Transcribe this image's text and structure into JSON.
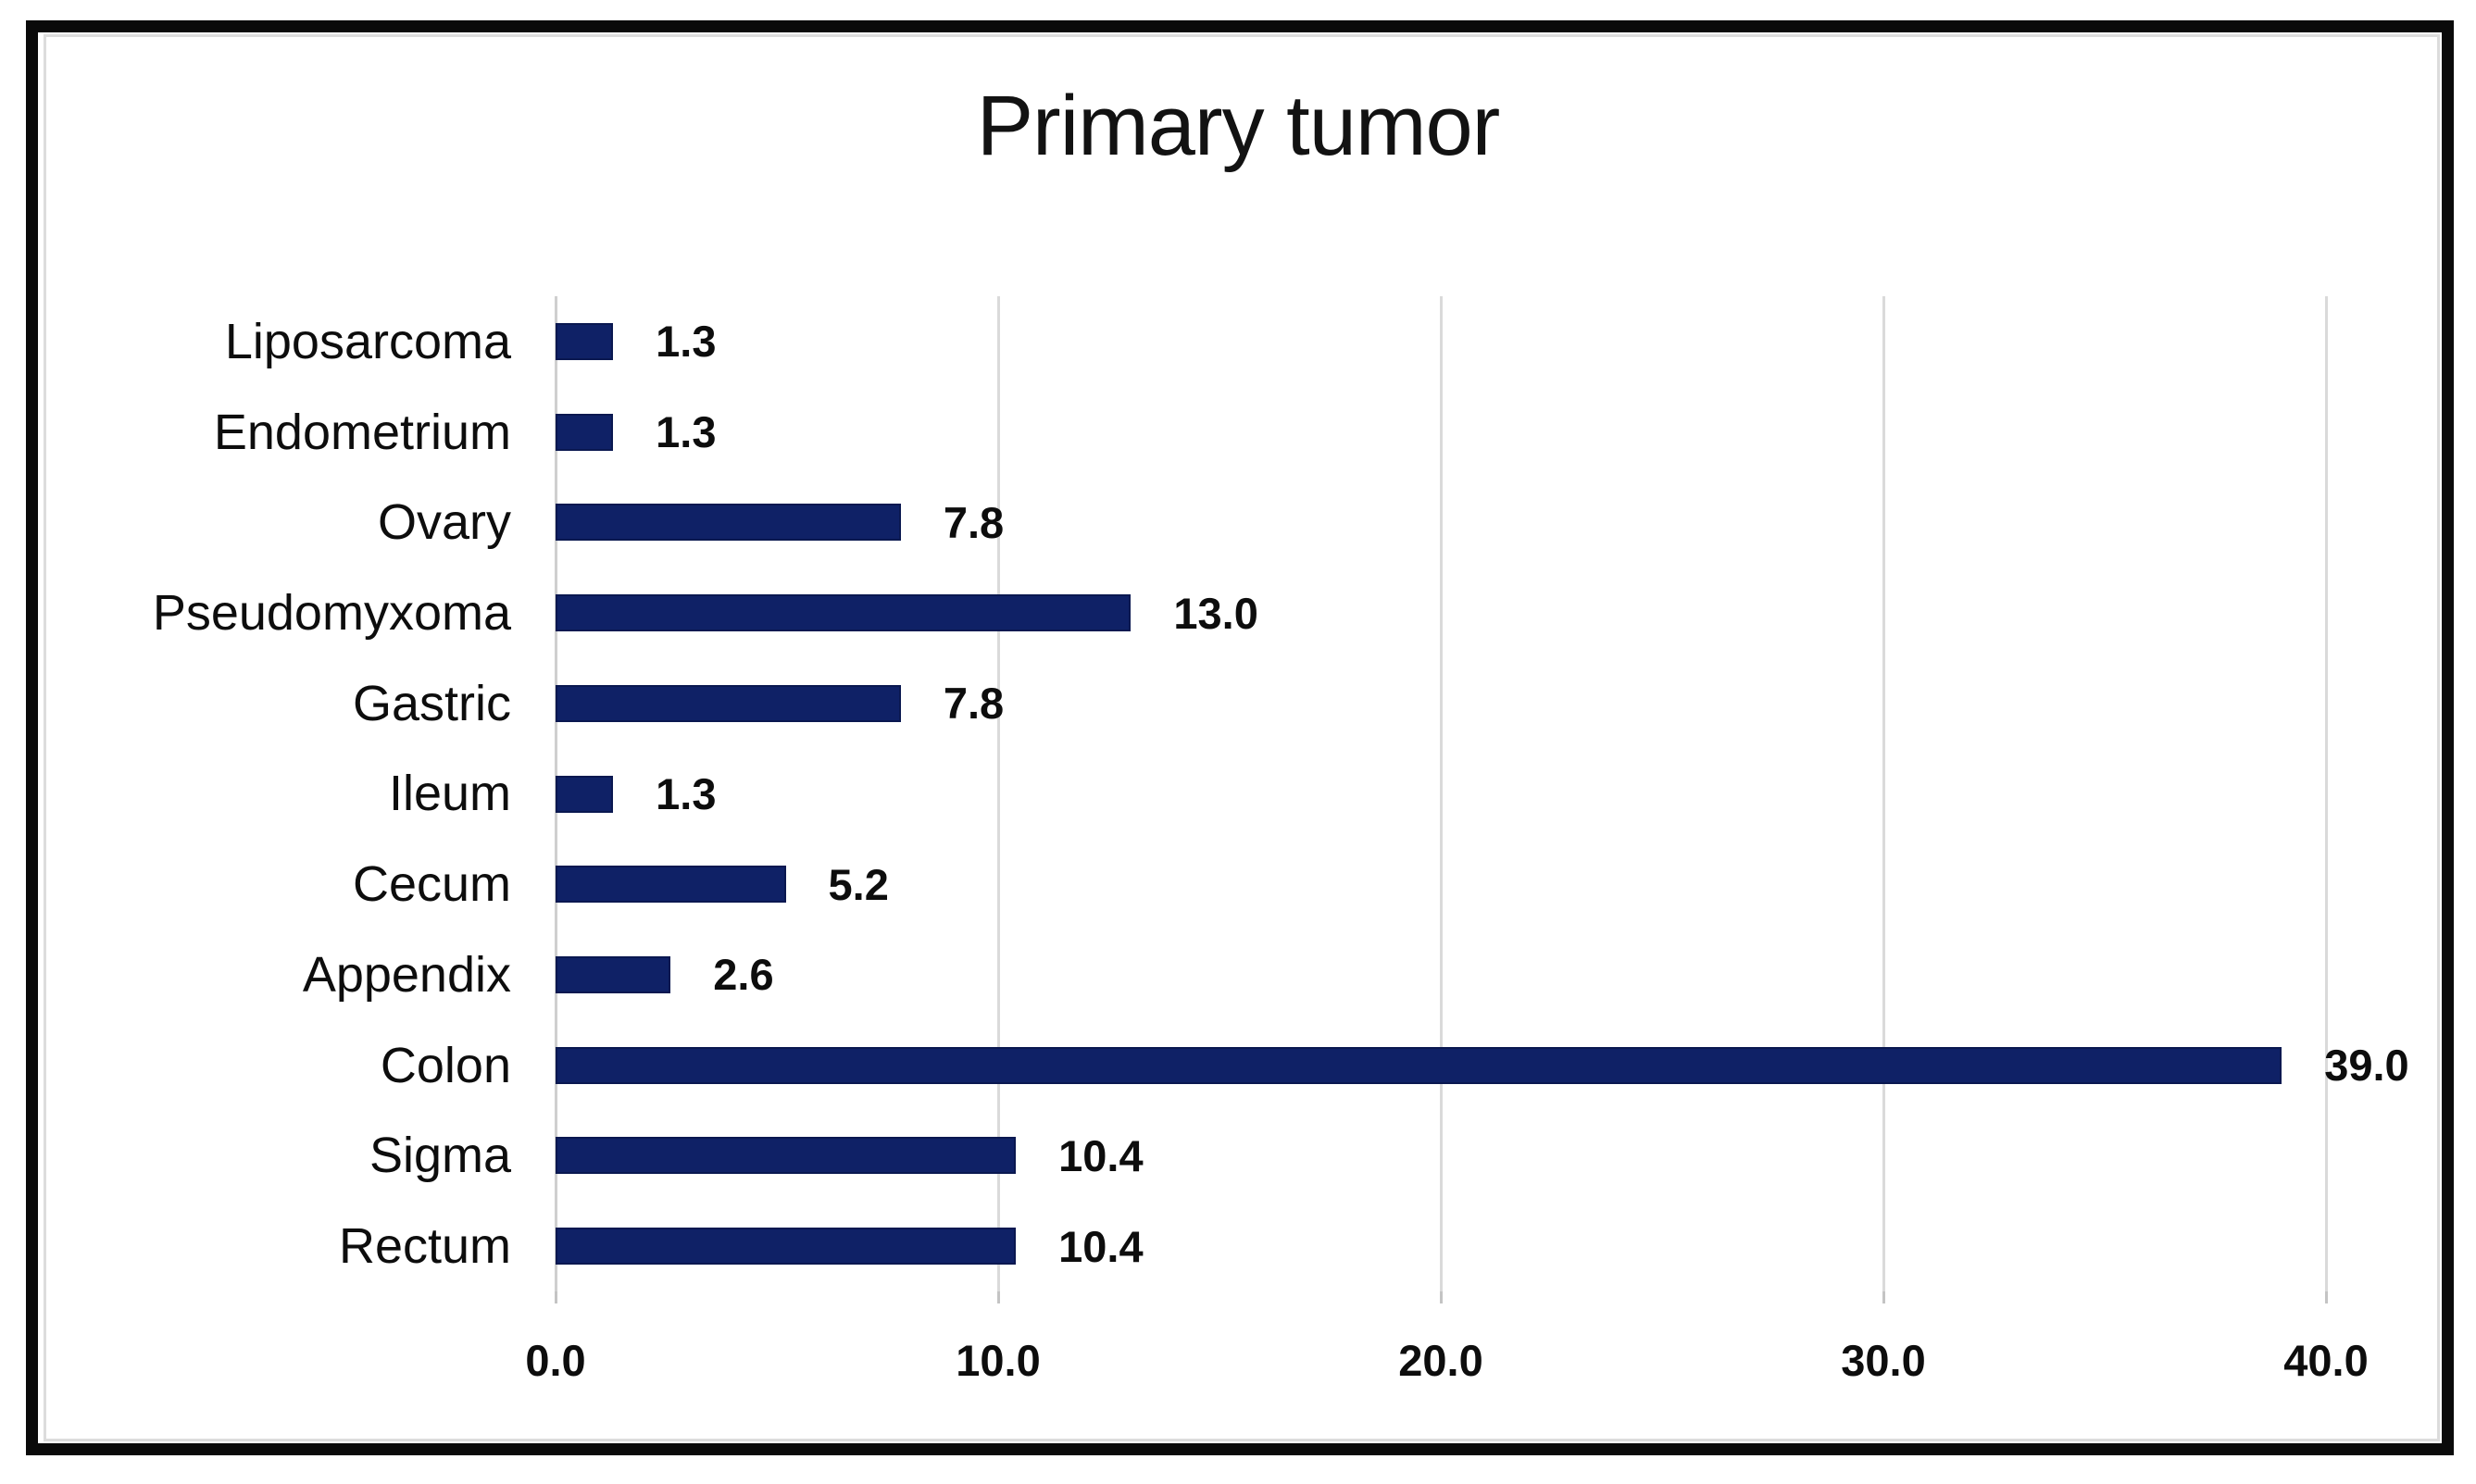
{
  "chart_data": {
    "type": "bar",
    "orientation": "horizontal",
    "title": "Primary tumor",
    "categories": [
      "Liposarcoma",
      "Endometrium",
      "Ovary",
      "Pseudomyxoma",
      "Gastric",
      "Ileum",
      "Cecum",
      "Appendix",
      "Colon",
      "Sigma",
      "Rectum"
    ],
    "values": [
      1.3,
      1.3,
      7.8,
      13.0,
      7.8,
      1.3,
      5.2,
      2.6,
      39.0,
      10.4,
      10.4
    ],
    "value_labels": [
      "1.3",
      "1.3",
      "7.8",
      "13.0",
      "7.8",
      "1.3",
      "5.2",
      "2.6",
      "39.0",
      "10.4",
      "10.4"
    ],
    "x_ticks": [
      "0.0",
      "10.0",
      "20.0",
      "30.0",
      "40.0"
    ],
    "x_tick_values": [
      0,
      10,
      20,
      30,
      40
    ],
    "xlim": [
      0,
      40
    ],
    "xlabel": "",
    "ylabel": "",
    "legend": "none",
    "grid": "vertical",
    "data_labels": "outside-end",
    "bar_color": "#0f2166",
    "bar_border_color": "#0a1850",
    "gridline_color": "#dadada",
    "text_color": "#0d0d0d"
  }
}
